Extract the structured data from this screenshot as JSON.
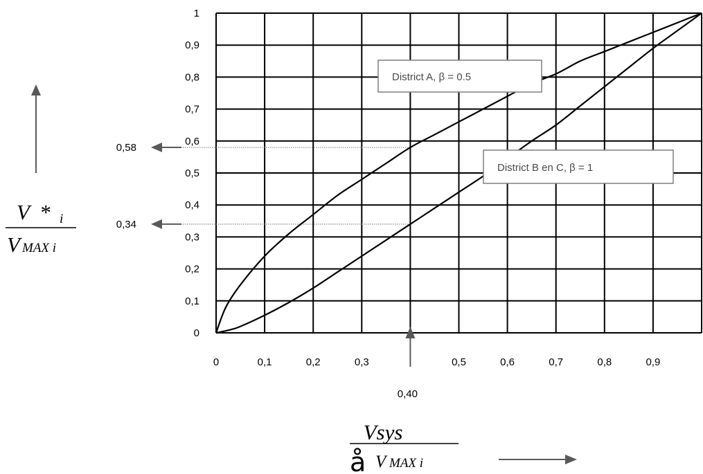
{
  "chart_data": {
    "type": "line",
    "xlim": [
      0,
      1
    ],
    "ylim": [
      0,
      1
    ],
    "x_tick_labels": [
      "0",
      "0,1",
      "0,2",
      "0,3",
      "0,5",
      "0,6",
      "0,7",
      "0,8",
      "0,9"
    ],
    "x_tick_values": [
      0,
      0.1,
      0.2,
      0.3,
      0.5,
      0.6,
      0.7,
      0.8,
      0.9
    ],
    "y_tick_labels": [
      "0",
      "0,1",
      "0,2",
      "0,3",
      "0,4",
      "0,5",
      "0,6",
      "0,7",
      "0,8",
      "0,9",
      "1"
    ],
    "y_tick_values": [
      0,
      0.1,
      0.2,
      0.3,
      0.4,
      0.5,
      0.6,
      0.7,
      0.8,
      0.9,
      1
    ],
    "grid": true,
    "series": [
      {
        "name": "District A, β = 0.5",
        "x": [
          0,
          0.02,
          0.05,
          0.1,
          0.15,
          0.2,
          0.25,
          0.3,
          0.35,
          0.4,
          0.45,
          0.5,
          0.55,
          0.6,
          0.65,
          0.7,
          0.75,
          0.8,
          0.85,
          0.9,
          0.95,
          1
        ],
        "y": [
          0,
          0.08,
          0.15,
          0.24,
          0.31,
          0.37,
          0.43,
          0.48,
          0.53,
          0.58,
          0.62,
          0.66,
          0.7,
          0.74,
          0.78,
          0.81,
          0.85,
          0.88,
          0.91,
          0.94,
          0.97,
          1
        ]
      },
      {
        "name": "District B en C, β = 1",
        "x": [
          0,
          0.03,
          0.05,
          0.1,
          0.15,
          0.2,
          0.25,
          0.3,
          0.35,
          0.4,
          0.45,
          0.5,
          0.55,
          0.6,
          0.65,
          0.7,
          0.75,
          0.8,
          0.85,
          0.9,
          0.95,
          1
        ],
        "y": [
          0,
          0.01,
          0.02,
          0.055,
          0.095,
          0.14,
          0.19,
          0.24,
          0.29,
          0.34,
          0.39,
          0.44,
          0.49,
          0.545,
          0.6,
          0.65,
          0.71,
          0.77,
          0.83,
          0.89,
          0.945,
          1
        ]
      }
    ],
    "annotations": {
      "x_marker": {
        "x": 0.4,
        "label": "0,40"
      },
      "y_markers": [
        {
          "y": 0.58,
          "label": "0,58"
        },
        {
          "y": 0.34,
          "label": "0,34"
        }
      ]
    },
    "callouts": [
      {
        "text": "District A, β = 0.5",
        "series": 0
      },
      {
        "text": "District B en C, β = 1",
        "series": 1
      }
    ]
  },
  "axis_labels": {
    "y": {
      "numerator_main": "V",
      "numerator_star": "*",
      "numerator_sub": "i",
      "denominator_main": "V",
      "denominator_sub": "MAX i"
    },
    "x": {
      "numerator": "Vsys",
      "sigma": "å",
      "denominator_main": "V",
      "denominator_sub": "MAX i"
    }
  },
  "colors": {
    "grid": "#000000",
    "curve": "#000000",
    "arrow": "#595959",
    "guide": "#7f7f7f",
    "callout_border": "#7f7f7f"
  }
}
